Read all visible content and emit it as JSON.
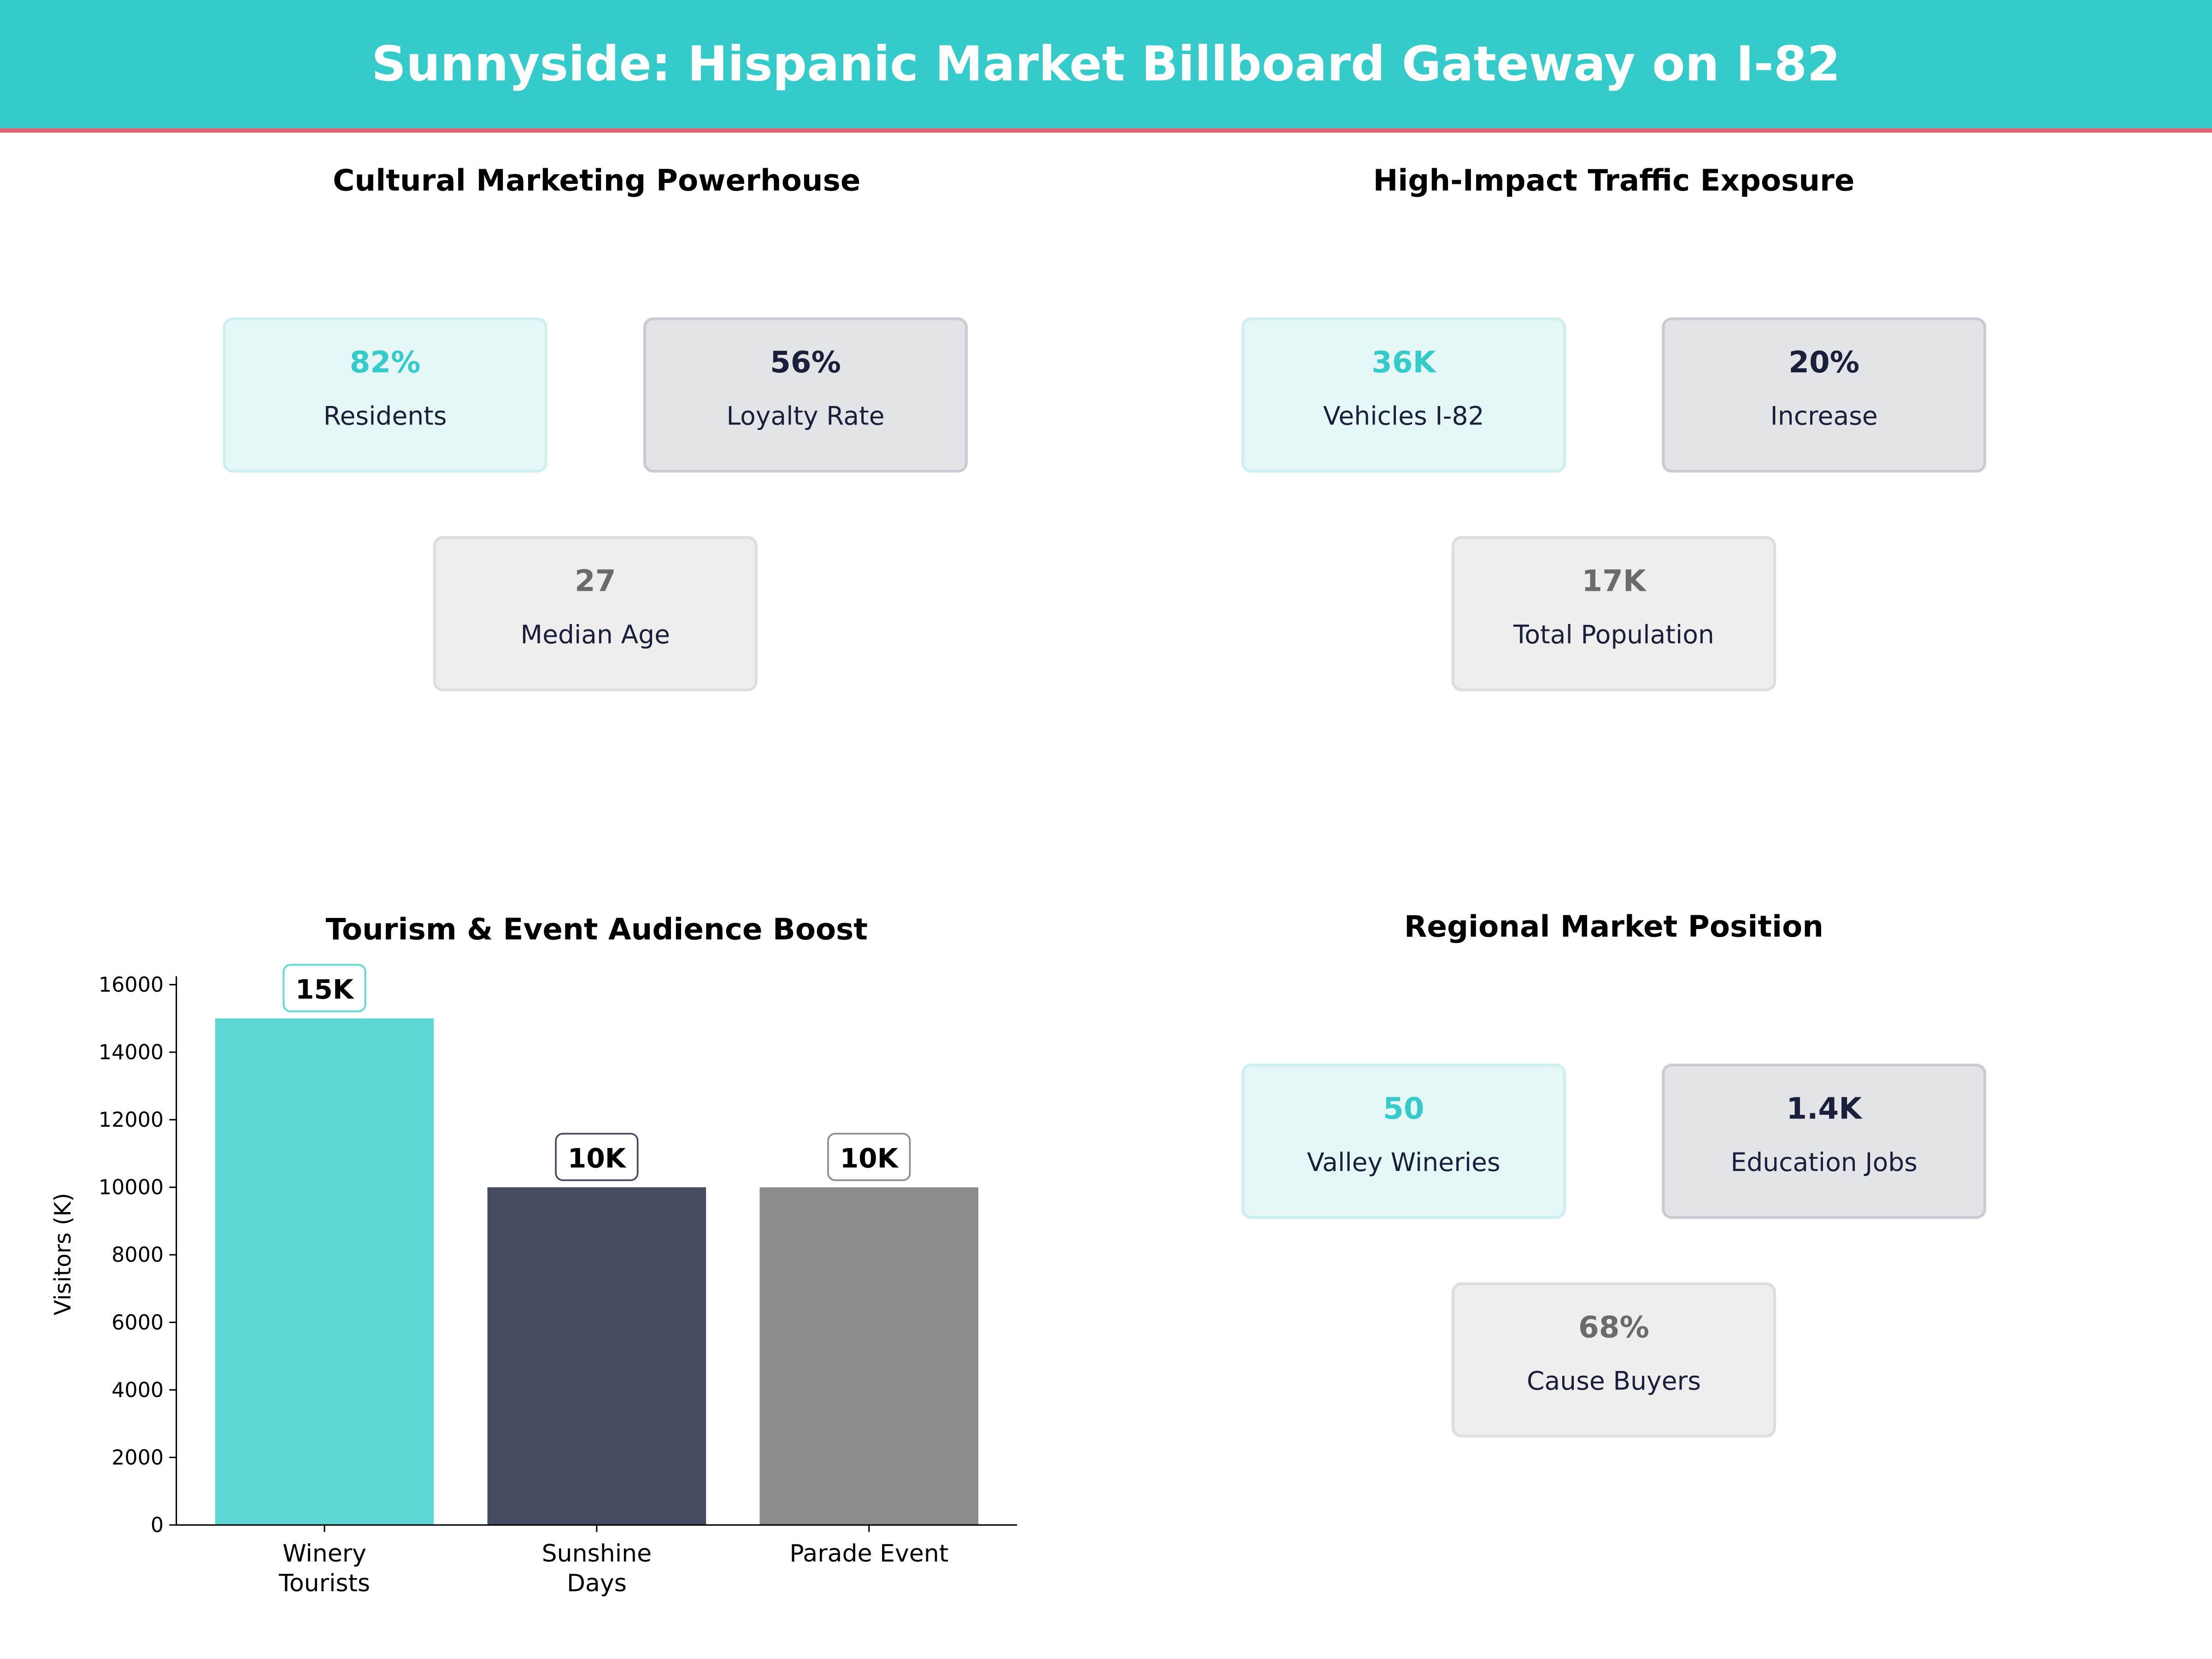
{
  "title": "Sunnyside: Hispanic Market Billboard Gateway on I-82",
  "colors": {
    "teal": "#36CBCB",
    "navy": "#1A1F3A",
    "gray": "#6B6B6B",
    "accent_line": "#E8606F"
  },
  "panels": [
    {
      "title": "Cultural Marketing Powerhouse",
      "cards": [
        {
          "value": "82%",
          "label": "Residents",
          "style": "teal"
        },
        {
          "value": "56%",
          "label": "Loyalty Rate",
          "style": "navy"
        },
        {
          "value": "27",
          "label": "Median Age",
          "style": "gray"
        }
      ]
    },
    {
      "title": "High-Impact Traffic Exposure",
      "cards": [
        {
          "value": "36K",
          "label": "Vehicles I-82",
          "style": "teal"
        },
        {
          "value": "20%",
          "label": "Increase",
          "style": "navy"
        },
        {
          "value": "17K",
          "label": "Total Population",
          "style": "gray"
        }
      ]
    },
    {
      "title": "Regional Market Position",
      "cards": [
        {
          "value": "50",
          "label": "Valley Wineries",
          "style": "teal"
        },
        {
          "value": "1.4K",
          "label": "Education Jobs",
          "style": "navy"
        },
        {
          "value": "68%",
          "label": "Cause Buyers",
          "style": "gray"
        }
      ]
    }
  ],
  "chart_data": {
    "type": "bar",
    "title": "Tourism & Event Audience Boost",
    "ylabel": "Visitors (K)",
    "xlabel": "",
    "categories": [
      [
        "Winery",
        "Tourists"
      ],
      [
        "Sunshine",
        "Days"
      ],
      [
        "Parade Event"
      ]
    ],
    "values": [
      15000,
      10000,
      10000
    ],
    "data_labels": [
      "15K",
      "10K",
      "10K"
    ],
    "bar_colors": [
      "#5DD8D5",
      "#464B61",
      "#8C8C8C"
    ],
    "label_border_colors": [
      "#5DD8D5",
      "#464B61",
      "#8C8C8C"
    ],
    "ylim": [
      0,
      16250
    ],
    "yticks": [
      0,
      2000,
      4000,
      6000,
      8000,
      10000,
      12000,
      14000,
      16000
    ],
    "grid": false
  }
}
